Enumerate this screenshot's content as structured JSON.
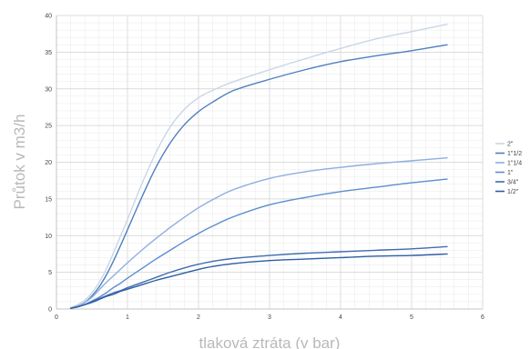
{
  "chart_data": {
    "type": "line",
    "title": "",
    "xlabel": "tlaková ztráta (v bar)",
    "ylabel": "Průtok v m3/h",
    "xlim": [
      0,
      6
    ],
    "ylim": [
      0,
      40
    ],
    "x_ticks": [
      "0",
      "1",
      "2",
      "3",
      "4",
      "5",
      "6"
    ],
    "y_ticks": [
      "0",
      "5",
      "10",
      "15",
      "20",
      "25",
      "30",
      "35",
      "40"
    ],
    "grid": true,
    "legend_position": "right",
    "x": [
      0.2,
      0.3,
      0.4,
      0.5,
      0.6,
      0.7,
      0.8,
      0.9,
      1.0,
      1.2,
      1.4,
      1.6,
      1.8,
      2.0,
      2.2,
      2.5,
      3.0,
      3.5,
      4.0,
      4.5,
      5.0,
      5.5
    ],
    "series": [
      {
        "name": "2\"",
        "color": "#c9d6e6",
        "values": [
          0.2,
          0.6,
          1.2,
          2.2,
          3.6,
          5.4,
          7.6,
          9.9,
          12.2,
          17.0,
          21.3,
          24.8,
          27.2,
          28.8,
          29.8,
          31.0,
          32.6,
          34.1,
          35.5,
          36.8,
          37.8,
          38.8
        ]
      },
      {
        "name": "1\"1/2",
        "color": "#4f7fc1",
        "values": [
          0.1,
          0.4,
          0.9,
          1.8,
          3.0,
          4.6,
          6.5,
          8.6,
          10.8,
          15.2,
          19.3,
          22.6,
          25.1,
          26.9,
          28.2,
          29.8,
          31.3,
          32.6,
          33.7,
          34.5,
          35.2,
          36.0
        ]
      },
      {
        "name": "1\"1/4",
        "color": "#8eaee0",
        "values": [
          0.1,
          0.4,
          0.9,
          1.6,
          2.6,
          3.6,
          4.5,
          5.4,
          6.3,
          8.0,
          9.6,
          11.1,
          12.5,
          13.8,
          14.9,
          16.3,
          17.8,
          18.7,
          19.3,
          19.8,
          20.2,
          20.6
        ]
      },
      {
        "name": "1\"",
        "color": "#5b8ed0",
        "values": [
          0.1,
          0.3,
          0.6,
          1.1,
          1.6,
          2.2,
          2.9,
          3.5,
          4.2,
          5.5,
          6.8,
          8.0,
          9.2,
          10.3,
          11.3,
          12.6,
          14.2,
          15.2,
          16.0,
          16.6,
          17.2,
          17.7
        ]
      },
      {
        "name": "3/4\"",
        "color": "#3f6cb0",
        "values": [
          0.1,
          0.3,
          0.6,
          1.0,
          1.4,
          1.8,
          2.2,
          2.5,
          2.9,
          3.6,
          4.3,
          5.0,
          5.6,
          6.1,
          6.5,
          6.9,
          7.3,
          7.6,
          7.8,
          8.0,
          8.2,
          8.5
        ]
      },
      {
        "name": "1/2\"",
        "color": "#2e5ea5",
        "values": [
          0.1,
          0.3,
          0.6,
          0.9,
          1.3,
          1.7,
          2.0,
          2.4,
          2.7,
          3.3,
          3.9,
          4.4,
          4.9,
          5.4,
          5.8,
          6.2,
          6.6,
          6.8,
          7.0,
          7.2,
          7.3,
          7.5
        ]
      }
    ]
  }
}
